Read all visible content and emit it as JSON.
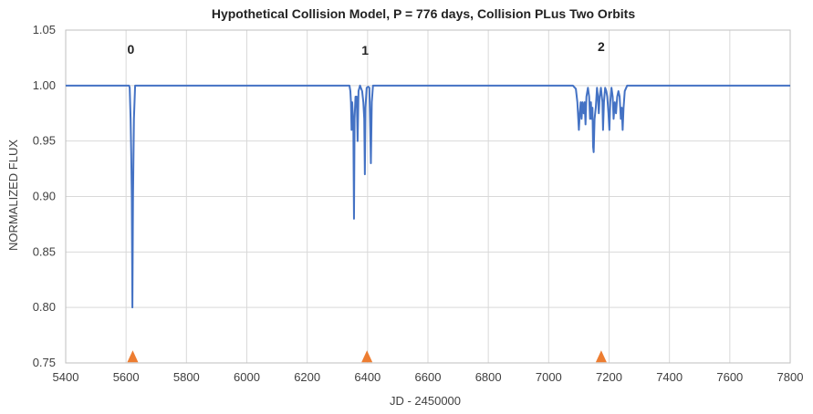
{
  "chart_data": {
    "type": "line",
    "title": "Hypothetical Collision Model, P = 776 days, Collision PLus Two Orbits",
    "xlabel": "JD - 2450000",
    "ylabel": "NORMALIZED FLUX",
    "xlim": [
      5400,
      7800
    ],
    "ylim": [
      0.75,
      1.05
    ],
    "x_ticks": [
      5400,
      5600,
      5800,
      6000,
      6200,
      6400,
      6600,
      6800,
      7000,
      7200,
      7400,
      7600,
      7800
    ],
    "y_ticks": [
      "0.75",
      "0.80",
      "0.85",
      "0.90",
      "0.95",
      "1.00",
      "1.05"
    ],
    "grid": true,
    "colors": {
      "line": "#4472c4",
      "marker": "#ed7d31",
      "grid": "#d9d9d9"
    },
    "series": [
      {
        "values": [
          [
            5400,
            1.0
          ],
          [
            5610,
            1.0
          ],
          [
            5612,
            0.998
          ],
          [
            5615,
            0.97
          ],
          [
            5617,
            0.94
          ],
          [
            5619,
            0.9
          ],
          [
            5620,
            0.85
          ],
          [
            5621,
            0.8
          ],
          [
            5622,
            0.85
          ],
          [
            5623,
            0.9
          ],
          [
            5626,
            0.97
          ],
          [
            5630,
            1.0
          ],
          [
            6340,
            1.0
          ],
          [
            6343,
            0.995
          ],
          [
            6345,
            0.985
          ],
          [
            6347,
            0.96
          ],
          [
            6349,
            0.985
          ],
          [
            6351,
            0.975
          ],
          [
            6353,
            0.96
          ],
          [
            6355,
            0.88
          ],
          [
            6357,
            0.97
          ],
          [
            6360,
            0.99
          ],
          [
            6364,
            0.99
          ],
          [
            6367,
            0.95
          ],
          [
            6370,
            0.995
          ],
          [
            6375,
            1.0
          ],
          [
            6382,
            0.995
          ],
          [
            6386,
            0.985
          ],
          [
            6389,
            0.97
          ],
          [
            6391,
            0.92
          ],
          [
            6393,
            0.98
          ],
          [
            6397,
            0.998
          ],
          [
            6402,
            0.999
          ],
          [
            6406,
            0.998
          ],
          [
            6409,
            0.96
          ],
          [
            6411,
            0.93
          ],
          [
            6414,
            0.985
          ],
          [
            6418,
            1.0
          ],
          [
            7080,
            1.0
          ],
          [
            7090,
            0.997
          ],
          [
            7095,
            0.985
          ],
          [
            7100,
            0.96
          ],
          [
            7103,
            0.975
          ],
          [
            7106,
            0.985
          ],
          [
            7109,
            0.97
          ],
          [
            7112,
            0.985
          ],
          [
            7116,
            0.975
          ],
          [
            7119,
            0.985
          ],
          [
            7122,
            0.965
          ],
          [
            7125,
            0.99
          ],
          [
            7130,
            0.998
          ],
          [
            7134,
            0.99
          ],
          [
            7137,
            0.97
          ],
          [
            7140,
            0.985
          ],
          [
            7142,
            0.97
          ],
          [
            7145,
            0.98
          ],
          [
            7147,
            0.945
          ],
          [
            7149,
            0.94
          ],
          [
            7152,
            0.97
          ],
          [
            7156,
            0.98
          ],
          [
            7160,
            0.998
          ],
          [
            7163,
            0.99
          ],
          [
            7166,
            0.975
          ],
          [
            7169,
            0.99
          ],
          [
            7173,
            0.998
          ],
          [
            7178,
            0.985
          ],
          [
            7180,
            0.96
          ],
          [
            7183,
            0.985
          ],
          [
            7187,
            0.998
          ],
          [
            7191,
            0.995
          ],
          [
            7194,
            0.99
          ],
          [
            7198,
            0.975
          ],
          [
            7201,
            0.96
          ],
          [
            7204,
            0.985
          ],
          [
            7208,
            0.998
          ],
          [
            7212,
            0.99
          ],
          [
            7215,
            0.97
          ],
          [
            7219,
            0.985
          ],
          [
            7223,
            0.975
          ],
          [
            7227,
            0.99
          ],
          [
            7231,
            0.995
          ],
          [
            7235,
            0.99
          ],
          [
            7239,
            0.97
          ],
          [
            7242,
            0.98
          ],
          [
            7245,
            0.96
          ],
          [
            7248,
            0.98
          ],
          [
            7252,
            0.995
          ],
          [
            7260,
            1.0
          ],
          [
            7800,
            1.0
          ]
        ]
      }
    ],
    "markers": [
      5622,
      6398,
      7174
    ],
    "marker_y": 0.7555,
    "annotations": [
      {
        "text": "0",
        "x": 5622
      },
      {
        "text": "1",
        "x": 6398
      },
      {
        "text": "2",
        "x": 7174
      }
    ]
  }
}
